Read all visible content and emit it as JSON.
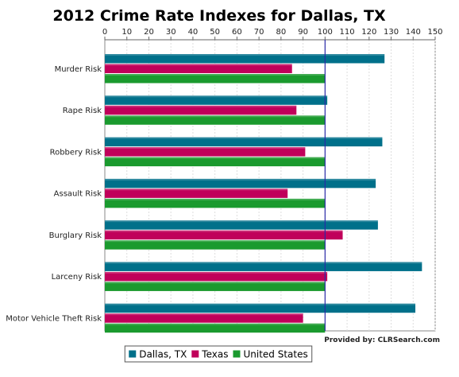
{
  "chart_data": {
    "type": "bar",
    "orientation": "horizontal",
    "title": "2012 Crime Rate Indexes for Dallas, TX",
    "categories": [
      "Murder Risk",
      "Rape Risk",
      "Robbery Risk",
      "Assault Risk",
      "Burglary Risk",
      "Larceny Risk",
      "Motor Vehicle Theft Risk"
    ],
    "series": [
      {
        "name": "Dallas, TX",
        "color": "#00708a",
        "values": [
          127,
          101,
          126,
          123,
          124,
          144,
          141
        ]
      },
      {
        "name": "Texas",
        "color": "#c0005a",
        "values": [
          85,
          87,
          91,
          83,
          108,
          101,
          90
        ]
      },
      {
        "name": "United States",
        "color": "#1a9a2e",
        "values": [
          100,
          100,
          100,
          100,
          100,
          100,
          100
        ]
      }
    ],
    "xaxis": {
      "position": "top",
      "range": [
        0,
        150
      ],
      "ticks": [
        0,
        10,
        20,
        30,
        40,
        50,
        60,
        70,
        80,
        90,
        100,
        110,
        120,
        130,
        140,
        150
      ]
    },
    "reference_line": {
      "value": 100,
      "color": "#2a2aa8"
    },
    "grid": true,
    "legend": "bottom-center",
    "credit": "Provided by: CLRSearch.com"
  }
}
